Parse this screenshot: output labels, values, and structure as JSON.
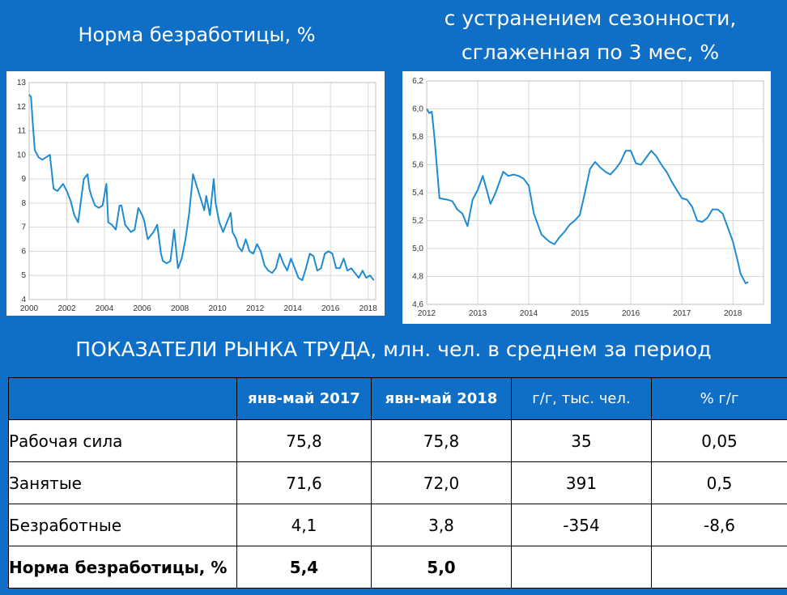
{
  "titles": {
    "left": "Норма безработицы, %",
    "right_line1": "с устранением сезонности,",
    "right_line2": "сглаженная по 3 мес, %"
  },
  "chart_data": [
    {
      "type": "line",
      "title": "Норма безработицы, %",
      "xlim": [
        2000,
        2018.4
      ],
      "ylim": [
        4,
        13
      ],
      "yticks": [
        "4",
        "5",
        "6",
        "7",
        "8",
        "9",
        "10",
        "11",
        "12",
        "13"
      ],
      "xticks": [
        "2000",
        "2002",
        "2004",
        "2006",
        "2008",
        "2010",
        "2012",
        "2014",
        "2016",
        "2018"
      ],
      "grid": true,
      "color": "#1f8bd1",
      "series": [
        {
          "x": [
            2000.0,
            2000.1,
            2000.2,
            2000.3,
            2000.5,
            2000.7,
            2000.9,
            2001.1,
            2001.3,
            2001.5,
            2001.6,
            2001.8,
            2002.0,
            2002.2,
            2002.4,
            2002.6,
            2002.7,
            2002.9,
            2003.1,
            2003.2,
            2003.3,
            2003.5,
            2003.7,
            2003.9,
            2004.1,
            2004.2,
            2004.4,
            2004.6,
            2004.8,
            2004.9,
            2005.1,
            2005.3,
            2005.4,
            2005.6,
            2005.8,
            2006.0,
            2006.1,
            2006.3,
            2006.5,
            2006.6,
            2006.8,
            2007.0,
            2007.1,
            2007.3,
            2007.5,
            2007.7,
            2007.9,
            2008.1,
            2008.3,
            2008.5,
            2008.7,
            2008.9,
            2009.1,
            2009.3,
            2009.4,
            2009.6,
            2009.8,
            2009.9,
            2010.1,
            2010.3,
            2010.5,
            2010.7,
            2010.8,
            2011.0,
            2011.1,
            2011.3,
            2011.5,
            2011.7,
            2011.9,
            2012.1,
            2012.3,
            2012.5,
            2012.7,
            2012.9,
            2013.1,
            2013.3,
            2013.5,
            2013.7,
            2013.9,
            2014.1,
            2014.3,
            2014.5,
            2014.7,
            2014.9,
            2015.1,
            2015.3,
            2015.5,
            2015.7,
            2015.9,
            2016.1,
            2016.3,
            2016.5,
            2016.7,
            2016.9,
            2017.1,
            2017.3,
            2017.5,
            2017.7,
            2017.9,
            2018.1,
            2018.3
          ],
          "y": [
            12.5,
            12.4,
            11.2,
            10.2,
            9.9,
            9.8,
            9.9,
            10.0,
            8.6,
            8.5,
            8.6,
            8.8,
            8.5,
            8.1,
            7.5,
            7.2,
            7.8,
            9.0,
            9.2,
            8.6,
            8.3,
            7.9,
            7.8,
            7.9,
            8.8,
            7.2,
            7.1,
            6.9,
            7.9,
            7.9,
            7.1,
            6.9,
            6.8,
            6.9,
            7.8,
            7.5,
            7.3,
            6.5,
            6.7,
            6.8,
            7.1,
            5.9,
            5.6,
            5.5,
            5.6,
            6.9,
            5.3,
            5.7,
            6.5,
            7.6,
            9.2,
            8.7,
            8.2,
            7.7,
            8.3,
            7.5,
            9.0,
            8.0,
            7.2,
            6.8,
            7.2,
            7.6,
            6.8,
            6.5,
            6.2,
            6.0,
            6.5,
            6.0,
            5.9,
            6.3,
            6.0,
            5.4,
            5.2,
            5.1,
            5.3,
            5.9,
            5.5,
            5.2,
            5.7,
            5.3,
            4.9,
            4.8,
            5.3,
            5.9,
            5.8,
            5.2,
            5.3,
            5.9,
            6.0,
            5.9,
            5.3,
            5.3,
            5.7,
            5.2,
            5.3,
            5.1,
            4.9,
            5.2,
            4.9,
            5.0,
            4.8
          ]
        }
      ]
    },
    {
      "type": "line",
      "title": "с устранением сезонности, сглаженная по 3 мес, %",
      "xlim": [
        2012,
        2018.6
      ],
      "ylim": [
        4.6,
        6.2
      ],
      "yticks": [
        "4,6",
        "4,8",
        "5,0",
        "5,2",
        "5,4",
        "5,6",
        "5,8",
        "6,0",
        "6,2"
      ],
      "xticks": [
        "2012",
        "2013",
        "2014",
        "2015",
        "2016",
        "2017",
        "2018"
      ],
      "grid": true,
      "color": "#1f8bd1",
      "series": [
        {
          "x": [
            2012.0,
            2012.05,
            2012.1,
            2012.15,
            2012.25,
            2012.4,
            2012.5,
            2012.6,
            2012.7,
            2012.8,
            2012.9,
            2013.0,
            2013.1,
            2013.25,
            2013.35,
            2013.5,
            2013.6,
            2013.7,
            2013.8,
            2013.9,
            2014.0,
            2014.1,
            2014.25,
            2014.4,
            2014.5,
            2014.6,
            2014.7,
            2014.8,
            2014.9,
            2015.0,
            2015.1,
            2015.2,
            2015.3,
            2015.4,
            2015.5,
            2015.6,
            2015.7,
            2015.8,
            2015.9,
            2016.0,
            2016.1,
            2016.2,
            2016.3,
            2016.4,
            2016.5,
            2016.6,
            2016.7,
            2016.8,
            2016.9,
            2017.0,
            2017.1,
            2017.2,
            2017.3,
            2017.4,
            2017.5,
            2017.6,
            2017.7,
            2017.8,
            2017.9,
            2018.0,
            2018.1,
            2018.15,
            2018.25,
            2018.3
          ],
          "y": [
            6.0,
            5.97,
            5.98,
            5.8,
            5.36,
            5.35,
            5.34,
            5.28,
            5.25,
            5.16,
            5.35,
            5.42,
            5.52,
            5.32,
            5.4,
            5.55,
            5.52,
            5.53,
            5.52,
            5.5,
            5.45,
            5.25,
            5.1,
            5.05,
            5.03,
            5.08,
            5.12,
            5.17,
            5.2,
            5.24,
            5.4,
            5.57,
            5.62,
            5.58,
            5.55,
            5.53,
            5.57,
            5.62,
            5.7,
            5.7,
            5.61,
            5.6,
            5.65,
            5.7,
            5.66,
            5.6,
            5.55,
            5.48,
            5.42,
            5.36,
            5.35,
            5.3,
            5.2,
            5.19,
            5.22,
            5.28,
            5.28,
            5.25,
            5.15,
            5.05,
            4.9,
            4.82,
            4.75,
            4.76
          ]
        }
      ]
    }
  ],
  "table": {
    "title": "ПОКАЗАТЕЛИ РЫНКА ТРУДА, млн. чел. в среднем за период",
    "headers": [
      "",
      "янв-май 2017",
      "явн-май 2018",
      "г/г, тыс. чел.",
      "% г/г"
    ],
    "rows": [
      {
        "label": "Рабочая сила",
        "v2017": "75,8",
        "v2018": "75,8",
        "yoy_abs": "35",
        "yoy_pct": "0,05"
      },
      {
        "label": "Занятые",
        "v2017": "71,6",
        "v2018": "72,0",
        "yoy_abs": "391",
        "yoy_pct": "0,5"
      },
      {
        "label": "Безработные",
        "v2017": "4,1",
        "v2018": "3,8",
        "yoy_abs": "-354",
        "yoy_pct": "-8,6"
      },
      {
        "label": "Норма безработицы, %",
        "v2017": "5,4",
        "v2018": "5,0",
        "yoy_abs": "",
        "yoy_pct": ""
      }
    ],
    "colors": {
      "negative": "#c00000",
      "positive": "#00b0f0",
      "header_bg": "#0f6fc6"
    }
  }
}
